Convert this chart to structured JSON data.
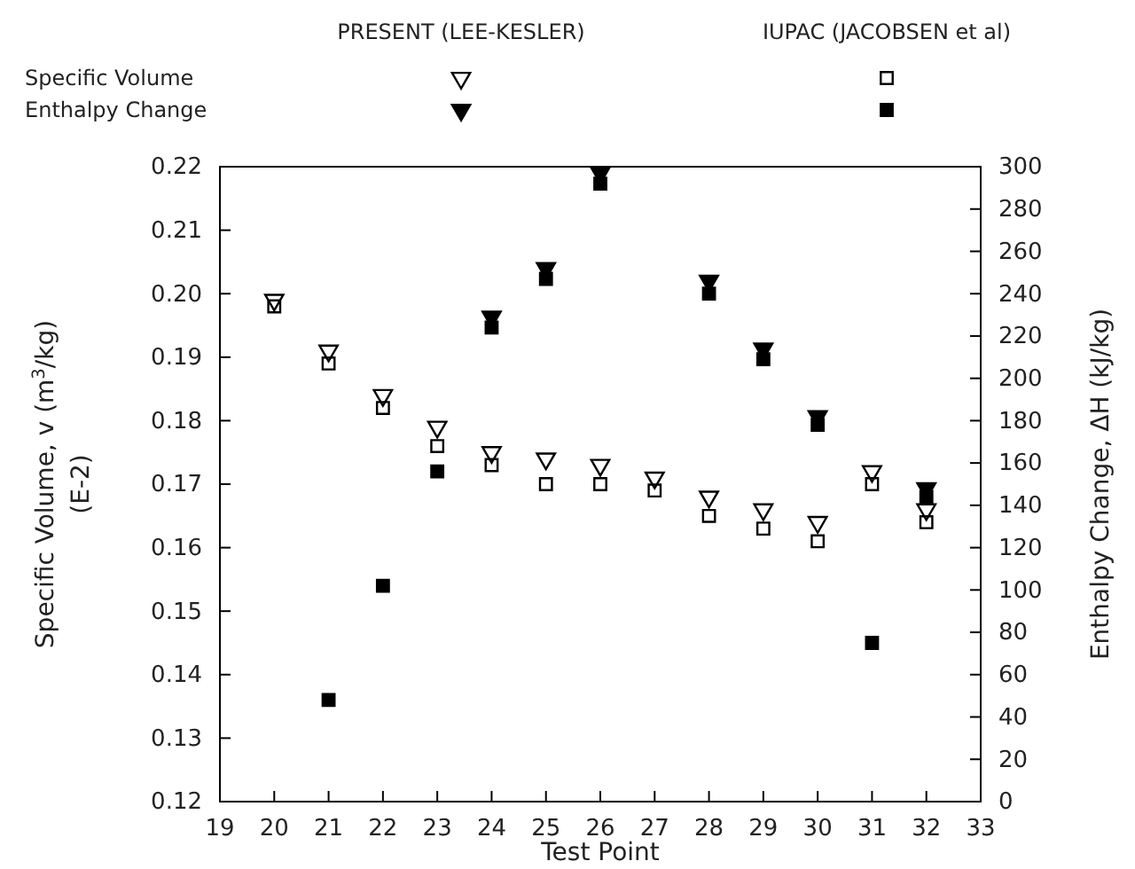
{
  "chart_data": {
    "type": "scatter",
    "xlabel": "Test Point",
    "ylabel": "Specific Volume, v (m$^{3}$/kg)\n(E-2)",
    "y2label": "Enthalpy Change, ΔH (kJ/kg)",
    "annotations": [
      "PRESENT (LEE-KESLER)",
      "IUPAC (JACOBSEN et al)",
      "Specific Volume",
      "Enthalpy Change"
    ],
    "grid": false,
    "xlim": [
      19,
      33
    ],
    "xticks": [
      19,
      20,
      21,
      22,
      23,
      24,
      25,
      26,
      27,
      28,
      29,
      30,
      31,
      32,
      33
    ],
    "ylim": [
      0.12,
      0.22
    ],
    "yticks": [
      {
        "value": 0.12,
        "label": "0.12"
      },
      {
        "value": 0.13,
        "label": "0.13"
      },
      {
        "value": 0.14,
        "label": "0.14"
      },
      {
        "value": 0.15,
        "label": "0.15"
      },
      {
        "value": 0.16,
        "label": "0.16"
      },
      {
        "value": 0.17,
        "label": "0.17"
      },
      {
        "value": 0.18,
        "label": "0.18"
      },
      {
        "value": 0.19,
        "label": "0.19"
      },
      {
        "value": 0.2,
        "label": "0.20"
      },
      {
        "value": 0.21,
        "label": "0.21"
      },
      {
        "value": 0.22,
        "label": "0.22"
      }
    ],
    "y2lim": [
      0,
      300
    ],
    "y2ticks": [
      0,
      20,
      40,
      60,
      80,
      100,
      120,
      140,
      160,
      180,
      200,
      220,
      240,
      260,
      280,
      300
    ],
    "series": [
      {
        "marker": "triangle",
        "color": "#000000",
        "x": [
          20,
          21,
          22,
          23,
          24,
          25,
          26,
          27,
          28,
          29,
          30,
          31,
          32
        ],
        "values": [
          0.199,
          0.191,
          0.184,
          0.179,
          0.175,
          0.174,
          0.173,
          0.171,
          0.168,
          0.166,
          0.164,
          0.172,
          0.166
        ]
      },
      {
        "marker": "square",
        "color": "#000000",
        "x": [
          20,
          21,
          22,
          23,
          24,
          25,
          26,
          27,
          28,
          29,
          30,
          31,
          32
        ],
        "values": [
          0.198,
          0.189,
          0.182,
          0.176,
          0.173,
          0.17,
          0.17,
          0.169,
          0.165,
          0.163,
          0.161,
          0.17,
          0.164
        ]
      },
      {
        "marker": "triangle",
        "color": "#000000",
        "axis": "y2",
        "x": [
          24,
          25,
          26,
          28,
          29,
          30,
          32
        ],
        "values": [
          229,
          252,
          297,
          246,
          214,
          182,
          148
        ]
      },
      {
        "marker": "square",
        "color": "#000000",
        "axis": "y2",
        "x": [
          21,
          22,
          23,
          24,
          25,
          26,
          28,
          29,
          30,
          31,
          32
        ],
        "values": [
          48,
          102,
          156,
          224,
          247,
          292,
          240,
          209,
          178,
          75,
          144
        ]
      }
    ]
  }
}
